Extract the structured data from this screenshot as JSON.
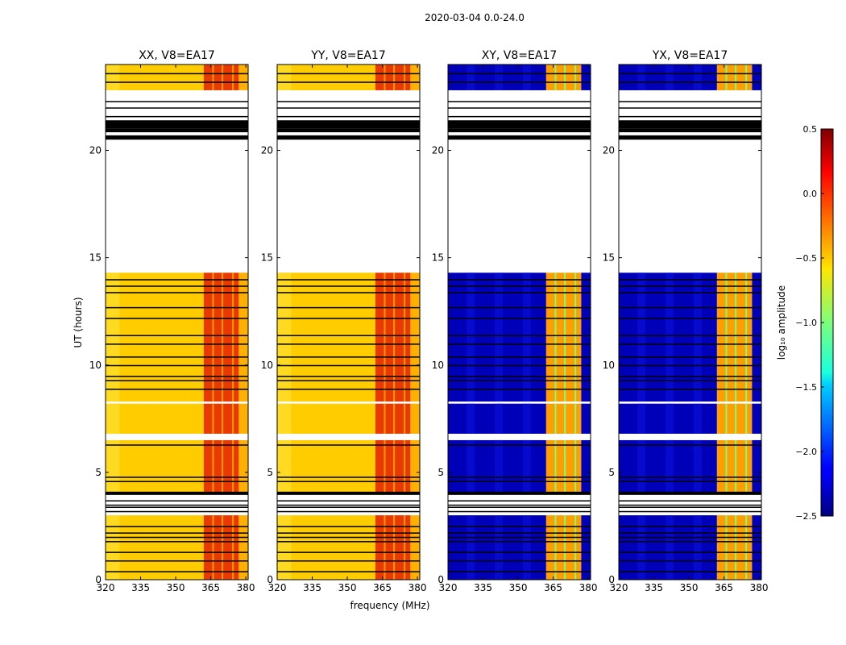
{
  "chart_data": {
    "type": "heatmap",
    "title": "2020-03-04 0.0-24.0",
    "xlabel": "frequency (MHz)",
    "ylabel": "UT (hours)",
    "xlim": [
      320,
      381
    ],
    "ylim": [
      0,
      24
    ],
    "x_ticks": [
      320,
      335,
      350,
      365,
      380
    ],
    "y_ticks": [
      0,
      5,
      10,
      15,
      20
    ],
    "panels": [
      {
        "title": "XX, V8=EA17",
        "polarization": "XX",
        "kind": "parallel"
      },
      {
        "title": "YY, V8=EA17",
        "polarization": "YY",
        "kind": "parallel"
      },
      {
        "title": "XY, V8=EA17",
        "polarization": "XY",
        "kind": "cross"
      },
      {
        "title": "YX, V8=EA17",
        "polarization": "YX",
        "kind": "cross"
      }
    ],
    "band_regions_mhz": [
      [
        320,
        362
      ],
      [
        362,
        377
      ],
      [
        377,
        381
      ]
    ],
    "time_segments_hours": [
      [
        0,
        3.0
      ],
      [
        4.0,
        6.5
      ],
      [
        6.8,
        8.2
      ],
      [
        8.3,
        14.3
      ],
      [
        22.8,
        24
      ]
    ],
    "masked_rows_hours": [
      0.4,
      0.9,
      1.3,
      1.8,
      2.0,
      2.2,
      2.5,
      3.2,
      3.4,
      3.5,
      3.7,
      4.6,
      4.8,
      6.3,
      8.9,
      9.3,
      9.5,
      10.0,
      10.4,
      11.0,
      11.4,
      12.2,
      12.7,
      13.4,
      13.7,
      14.0,
      20.6,
      20.9,
      21.2,
      21.6,
      22.0,
      22.3,
      23.2,
      23.6
    ],
    "masked_blocks_hours": [
      [
        20.5,
        20.7
      ],
      [
        20.9,
        21.0
      ],
      [
        21.0,
        21.4
      ],
      [
        3.95,
        4.1
      ]
    ],
    "freq_gaps_mhz": [
      366,
      370,
      374.5
    ],
    "colorbar": {
      "label": "log₁₀ amplitude",
      "min": -2.5,
      "max": 0.5,
      "ticks": [
        0.5,
        0.0,
        -0.5,
        -1.0,
        -1.5,
        -2.0,
        -2.5
      ],
      "tick_labels": [
        "0.5",
        "0.0",
        "−0.5",
        "−1.0",
        "−1.5",
        "−2.0",
        "−2.5"
      ],
      "colormap": "jet"
    }
  }
}
